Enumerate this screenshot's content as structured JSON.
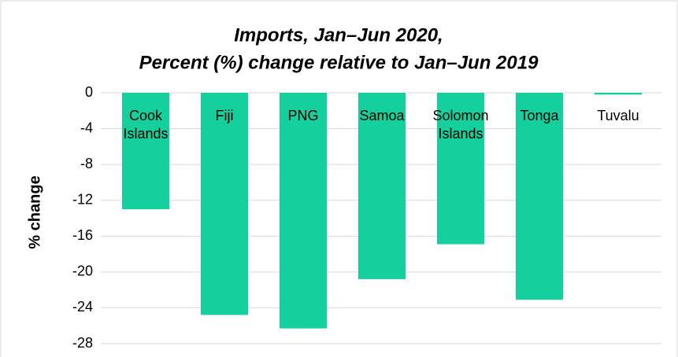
{
  "chart_data": {
    "type": "bar",
    "title": [
      "Imports, Jan–Jun 2020,",
      "Percent (%) change relative to Jan–Jun 2019"
    ],
    "y_label": "% change",
    "categories": [
      "Cook Islands",
      "Fiji",
      "PNG",
      "Samoa",
      "Solomon Islands",
      "Tonga",
      "Tuvalu"
    ],
    "values": [
      -13.0,
      -24.8,
      -26.3,
      -20.8,
      -16.9,
      -23.1,
      -0.2
    ],
    "color": "#14d09c",
    "ylim": [
      -28,
      0
    ],
    "yticks": [
      0,
      -4,
      -8,
      -12,
      -16,
      -20,
      -24,
      -28
    ],
    "grid": true
  }
}
